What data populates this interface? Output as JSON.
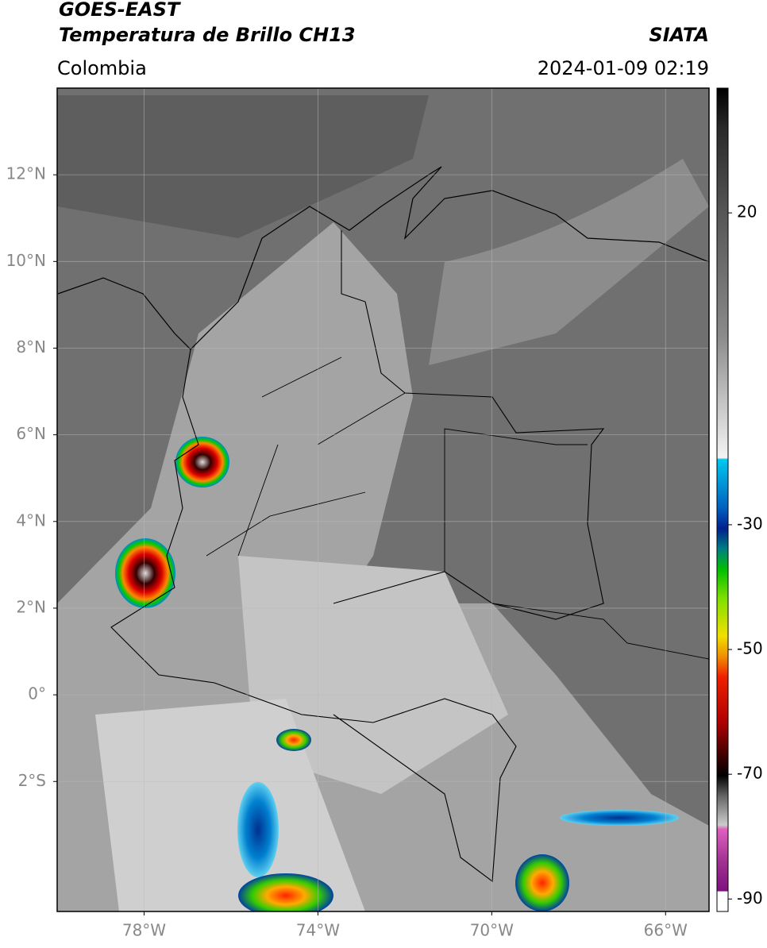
{
  "map": {
    "title": "GOES-EAST",
    "subtitle": "Temperatura de Brillo CH13",
    "region": "Colombia",
    "source": "SIATA",
    "datetime": "2024-01-09 02:19",
    "xlim": [
      -80,
      -65
    ],
    "ylim": [
      -5,
      14
    ],
    "xticks": [
      {
        "value": -78,
        "label": "78°W"
      },
      {
        "value": -74,
        "label": "74°W"
      },
      {
        "value": -70,
        "label": "70°W"
      },
      {
        "value": -66,
        "label": "66°W"
      }
    ],
    "yticks": [
      {
        "value": -2,
        "label": "2°S"
      },
      {
        "value": 0,
        "label": "0°"
      },
      {
        "value": 2,
        "label": "2°N"
      },
      {
        "value": 4,
        "label": "4°N"
      },
      {
        "value": 6,
        "label": "6°N"
      },
      {
        "value": 8,
        "label": "8°N"
      },
      {
        "value": 10,
        "label": "10°N"
      },
      {
        "value": 12,
        "label": "12°N"
      }
    ],
    "grid": true,
    "colorbar": {
      "lim": [
        -92,
        40
      ],
      "ticks": [
        20,
        -30,
        -50,
        -70,
        -90
      ]
    }
  }
}
